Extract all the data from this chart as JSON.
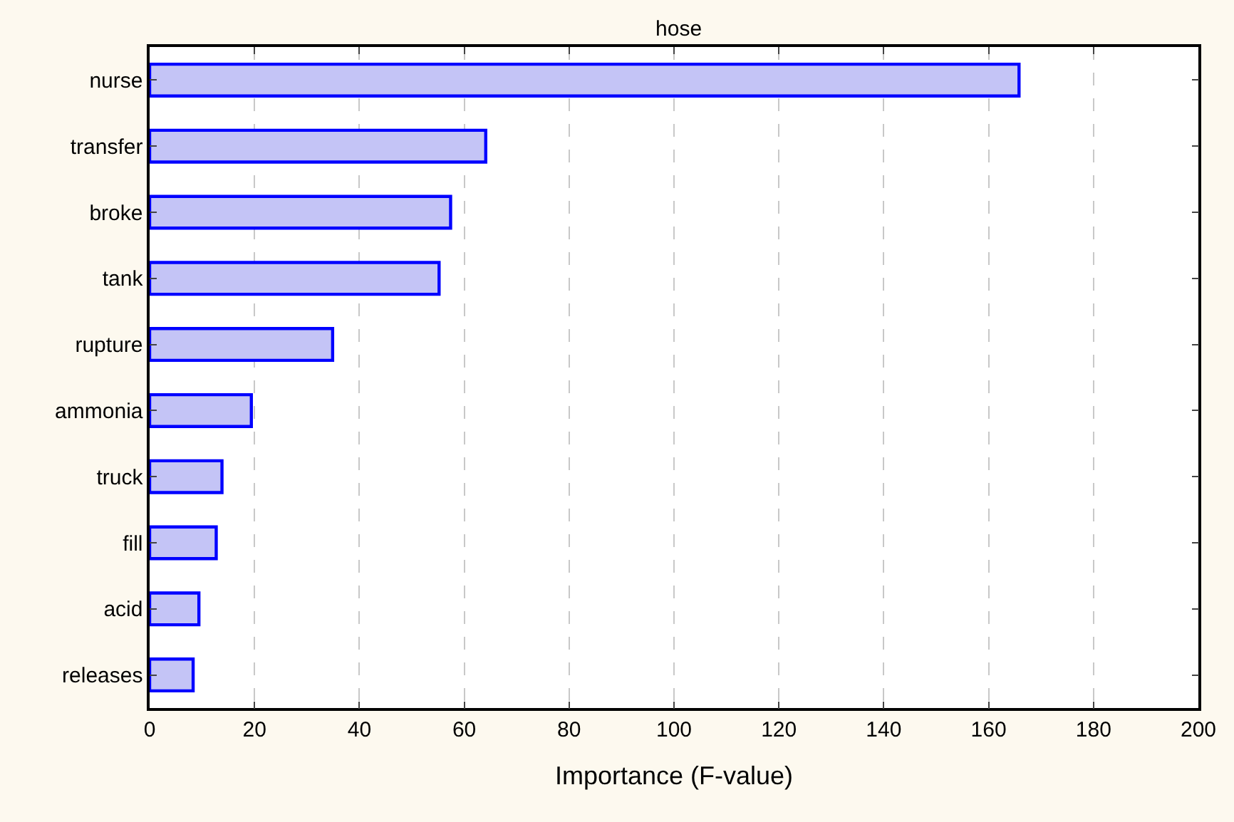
{
  "chart_data": {
    "type": "bar",
    "orientation": "horizontal",
    "title": "hose",
    "xlabel": "Importance (F-value)",
    "categories": [
      "nurse",
      "transfer",
      "broke",
      "tank",
      "rupture",
      "ammonia",
      "truck",
      "fill",
      "acid",
      "releases"
    ],
    "values": [
      165.8,
      64.1,
      57.4,
      55.2,
      34.9,
      19.4,
      13.8,
      12.7,
      9.4,
      8.3
    ],
    "color": "#c4c4f6",
    "xlim": [
      0,
      200
    ],
    "xticks": [
      0,
      20,
      40,
      60,
      80,
      100,
      120,
      140,
      160,
      180,
      200
    ],
    "grid": "x"
  }
}
